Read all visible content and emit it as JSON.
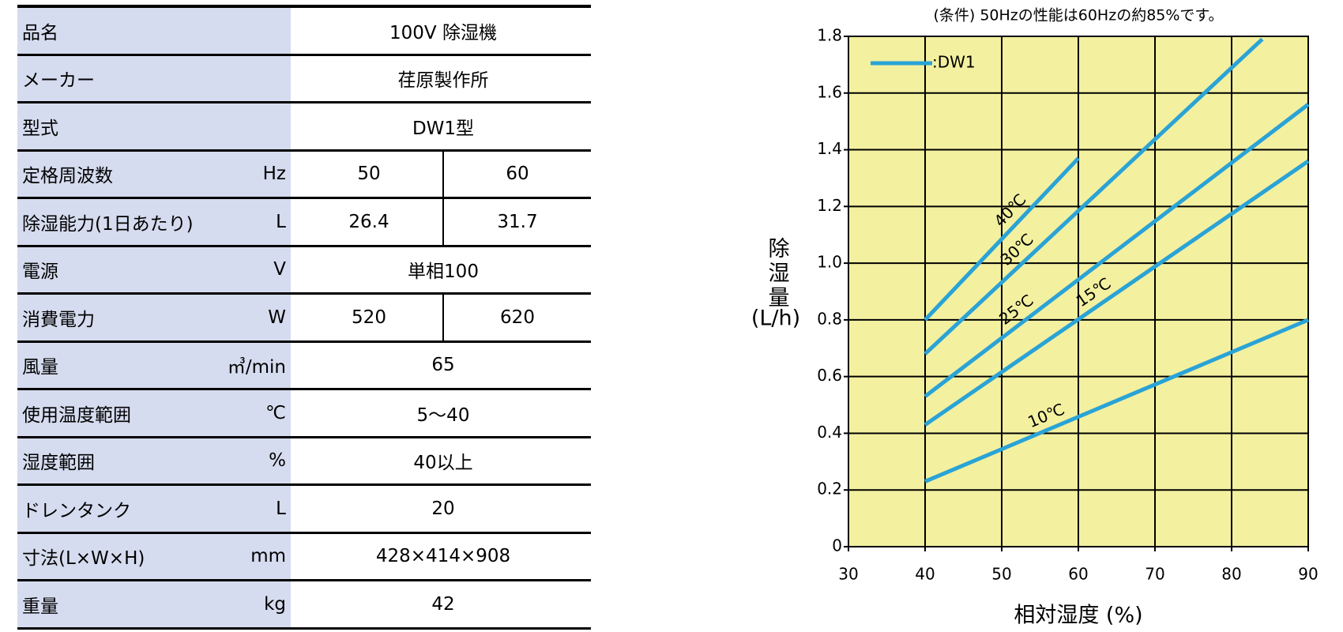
{
  "table": {
    "rows": [
      {
        "label": "品名",
        "values": [
          "100V 除湿機"
        ]
      },
      {
        "label": "メーカー",
        "values": [
          "荏原製作所"
        ]
      },
      {
        "label": "型式",
        "values": [
          "DW1型"
        ]
      },
      {
        "label": "定格周波数",
        "unit": "Hz",
        "values": [
          "50",
          "60"
        ]
      },
      {
        "label": "除湿能力(1日あたり)",
        "unit": "L",
        "values": [
          "26.4",
          "31.7"
        ]
      },
      {
        "label": "電源",
        "unit": "V",
        "values": [
          "単相100"
        ]
      },
      {
        "label": "消費電力",
        "unit": "W",
        "values": [
          "520",
          "620"
        ]
      },
      {
        "label": "風量",
        "unit": "㎥/min",
        "values": [
          "65"
        ]
      },
      {
        "label": "使用温度範囲",
        "unit": "℃",
        "values": [
          "5～40"
        ]
      },
      {
        "label": "湿度範囲",
        "unit": "%",
        "values": [
          "40以上"
        ]
      },
      {
        "label": "ドレンタンク",
        "unit": "L",
        "values": [
          "20"
        ]
      },
      {
        "label": "寸法(L×W×H)",
        "unit": "mm",
        "values": [
          "428×414×908"
        ]
      },
      {
        "label": "重量",
        "unit": "kg",
        "values": [
          "42"
        ]
      }
    ]
  },
  "chart_data": {
    "type": "line",
    "title": "(条件) 50Hzの性能は60Hzの約85%です。",
    "x_label": "相対湿度 (%)",
    "y_label": "除湿量",
    "y_unit": "(L/h)",
    "xlim": [
      30,
      90
    ],
    "ylim": [
      0,
      1.8
    ],
    "xticks": [
      30,
      40,
      50,
      60,
      70,
      80,
      90
    ],
    "yticks": [
      0,
      0.2,
      0.4,
      0.6,
      0.8,
      {
        "value": 1,
        "label": "1.0"
      },
      1.2,
      1.4,
      1.6,
      1.8
    ],
    "grid": true,
    "background": "#f3f0a0",
    "legend": {
      "label": ":DW1",
      "position": "upper left"
    },
    "series": [
      {
        "name": "40℃",
        "color": "#2aa3d6",
        "x": [
          40,
          60
        ],
        "values": [
          0.8,
          1.37
        ]
      },
      {
        "name": "30℃",
        "color": "#2aa3d6",
        "x": [
          40,
          84
        ],
        "values": [
          0.68,
          1.79
        ]
      },
      {
        "name": "25℃",
        "color": "#2aa3d6",
        "x": [
          40,
          90
        ],
        "values": [
          0.53,
          1.56
        ]
      },
      {
        "name": "15℃",
        "color": "#2aa3d6",
        "x": [
          40,
          90
        ],
        "values": [
          0.43,
          1.36
        ]
      },
      {
        "name": "10℃",
        "color": "#2aa3d6",
        "x": [
          40,
          90
        ],
        "values": [
          0.23,
          0.8
        ]
      }
    ]
  }
}
